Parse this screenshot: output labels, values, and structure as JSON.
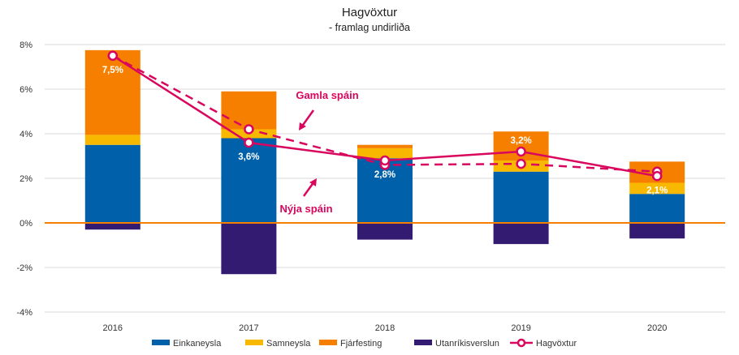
{
  "chart_data": {
    "type": "bar",
    "stacked": true,
    "title": "Hagvöxtur",
    "subtitle": "- framlag undirliða",
    "xlabel": "",
    "ylabel": "",
    "categories": [
      "2016",
      "2017",
      "2018",
      "2019",
      "2020"
    ],
    "ylim": [
      -4,
      8
    ],
    "yticks": [
      -4,
      -2,
      0,
      2,
      4,
      6,
      8
    ],
    "ytick_labels": [
      "-4%",
      "-2%",
      "0%",
      "2%",
      "4%",
      "6%",
      "8%"
    ],
    "grid": true,
    "legend_position": "bottom",
    "series": [
      {
        "name": "Einkaneysla",
        "type": "bar",
        "color": "#0060AA",
        "values": [
          3.5,
          3.8,
          2.9,
          2.3,
          1.3
        ]
      },
      {
        "name": "Samneysla",
        "type": "bar",
        "color": "#F9B800",
        "values": [
          0.45,
          0.4,
          0.45,
          0.5,
          0.5
        ]
      },
      {
        "name": "Fjárfesting",
        "type": "bar",
        "color": "#F77F00",
        "values": [
          3.8,
          1.7,
          0.15,
          1.3,
          0.95
        ]
      },
      {
        "name": "Utanríkisverslun",
        "type": "bar",
        "color": "#331B71",
        "values": [
          -0.3,
          -2.3,
          -0.75,
          -0.95,
          -0.7
        ]
      },
      {
        "name": "Hagvöxtur",
        "type": "line",
        "color": "#D9065E",
        "values": [
          7.5,
          3.6,
          2.8,
          3.2,
          2.1
        ],
        "data_labels": [
          "7,5%",
          "3,6%",
          "2,8%",
          "3,2%",
          "2,1%"
        ]
      },
      {
        "type": "line",
        "dashed": true,
        "color": "#D9065E",
        "values": [
          7.5,
          4.2,
          2.6,
          2.65,
          2.3
        ]
      }
    ],
    "annotations": [
      {
        "text": "Gamla spáin"
      },
      {
        "text": "Nýja spáin"
      }
    ],
    "zero_line_color": "#F77F00"
  }
}
